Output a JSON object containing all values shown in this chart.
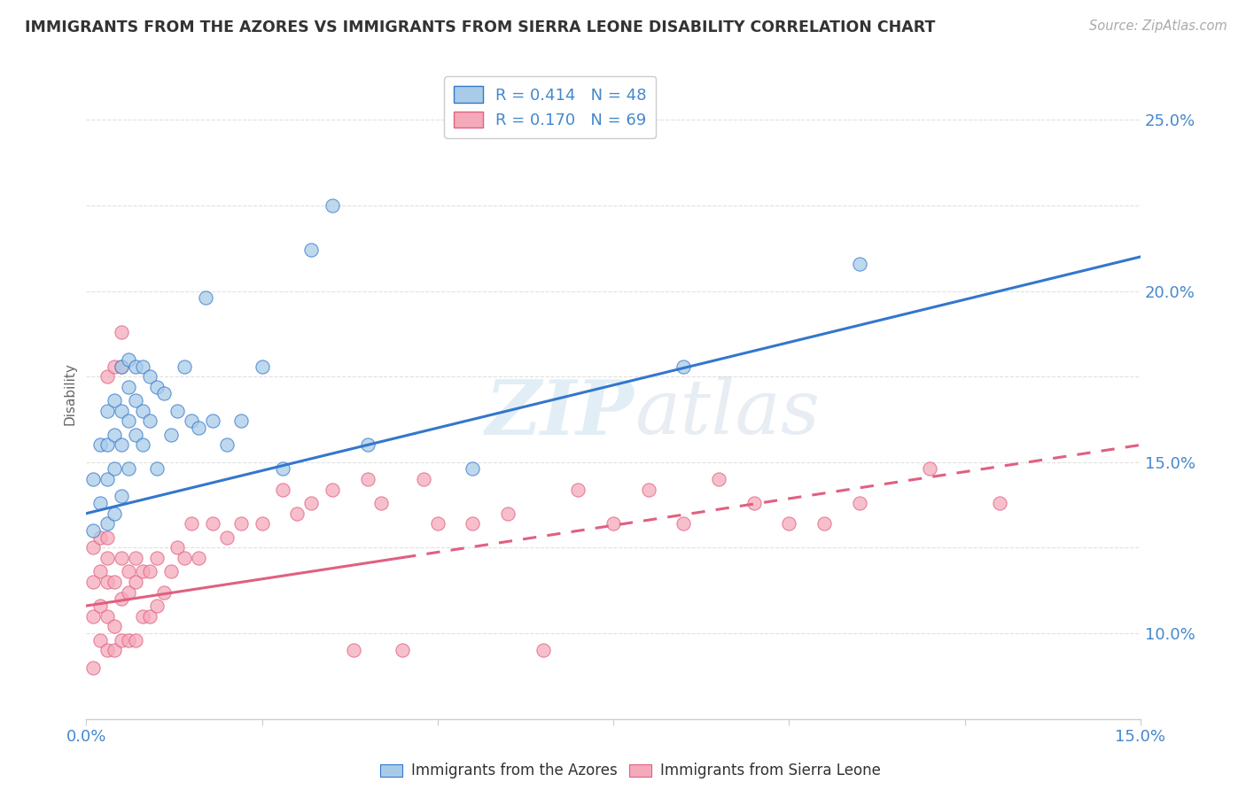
{
  "title": "IMMIGRANTS FROM THE AZORES VS IMMIGRANTS FROM SIERRA LEONE DISABILITY CORRELATION CHART",
  "source": "Source: ZipAtlas.com",
  "ylabel": "Disability",
  "xlim": [
    0.0,
    0.15
  ],
  "ylim": [
    0.075,
    0.265
  ],
  "color_azores": "#a8cce8",
  "color_sierra": "#f5aabb",
  "color_blue_line": "#3377cc",
  "color_pink_line": "#e06080",
  "color_tick": "#4488cc",
  "background_color": "#ffffff",
  "grid_color": "#e0e0e0",
  "azores_x": [
    0.001,
    0.001,
    0.002,
    0.002,
    0.003,
    0.003,
    0.003,
    0.003,
    0.004,
    0.004,
    0.004,
    0.004,
    0.005,
    0.005,
    0.005,
    0.005,
    0.006,
    0.006,
    0.006,
    0.006,
    0.007,
    0.007,
    0.007,
    0.008,
    0.008,
    0.008,
    0.009,
    0.009,
    0.01,
    0.01,
    0.011,
    0.012,
    0.013,
    0.014,
    0.015,
    0.016,
    0.017,
    0.018,
    0.02,
    0.022,
    0.025,
    0.028,
    0.032,
    0.035,
    0.04,
    0.055,
    0.085,
    0.11
  ],
  "azores_y": [
    0.13,
    0.145,
    0.138,
    0.155,
    0.132,
    0.145,
    0.155,
    0.165,
    0.135,
    0.148,
    0.158,
    0.168,
    0.14,
    0.155,
    0.165,
    0.178,
    0.148,
    0.162,
    0.172,
    0.18,
    0.158,
    0.168,
    0.178,
    0.155,
    0.165,
    0.178,
    0.162,
    0.175,
    0.148,
    0.172,
    0.17,
    0.158,
    0.165,
    0.178,
    0.162,
    0.16,
    0.198,
    0.162,
    0.155,
    0.162,
    0.178,
    0.148,
    0.212,
    0.225,
    0.155,
    0.148,
    0.178,
    0.208
  ],
  "sierra_x": [
    0.001,
    0.001,
    0.001,
    0.001,
    0.002,
    0.002,
    0.002,
    0.002,
    0.003,
    0.003,
    0.003,
    0.003,
    0.003,
    0.003,
    0.004,
    0.004,
    0.004,
    0.004,
    0.005,
    0.005,
    0.005,
    0.005,
    0.005,
    0.006,
    0.006,
    0.006,
    0.007,
    0.007,
    0.007,
    0.008,
    0.008,
    0.009,
    0.009,
    0.01,
    0.01,
    0.011,
    0.012,
    0.013,
    0.014,
    0.015,
    0.016,
    0.018,
    0.02,
    0.022,
    0.025,
    0.028,
    0.03,
    0.032,
    0.035,
    0.038,
    0.04,
    0.042,
    0.045,
    0.048,
    0.05,
    0.055,
    0.06,
    0.065,
    0.07,
    0.075,
    0.08,
    0.085,
    0.09,
    0.095,
    0.1,
    0.105,
    0.11,
    0.12,
    0.13
  ],
  "sierra_y": [
    0.09,
    0.105,
    0.115,
    0.125,
    0.098,
    0.108,
    0.118,
    0.128,
    0.095,
    0.105,
    0.115,
    0.122,
    0.128,
    0.175,
    0.095,
    0.102,
    0.115,
    0.178,
    0.098,
    0.11,
    0.122,
    0.178,
    0.188,
    0.098,
    0.112,
    0.118,
    0.098,
    0.115,
    0.122,
    0.105,
    0.118,
    0.105,
    0.118,
    0.108,
    0.122,
    0.112,
    0.118,
    0.125,
    0.122,
    0.132,
    0.122,
    0.132,
    0.128,
    0.132,
    0.132,
    0.142,
    0.135,
    0.138,
    0.142,
    0.095,
    0.145,
    0.138,
    0.095,
    0.145,
    0.132,
    0.132,
    0.135,
    0.095,
    0.142,
    0.132,
    0.142,
    0.132,
    0.145,
    0.138,
    0.132,
    0.132,
    0.138,
    0.148,
    0.138
  ]
}
